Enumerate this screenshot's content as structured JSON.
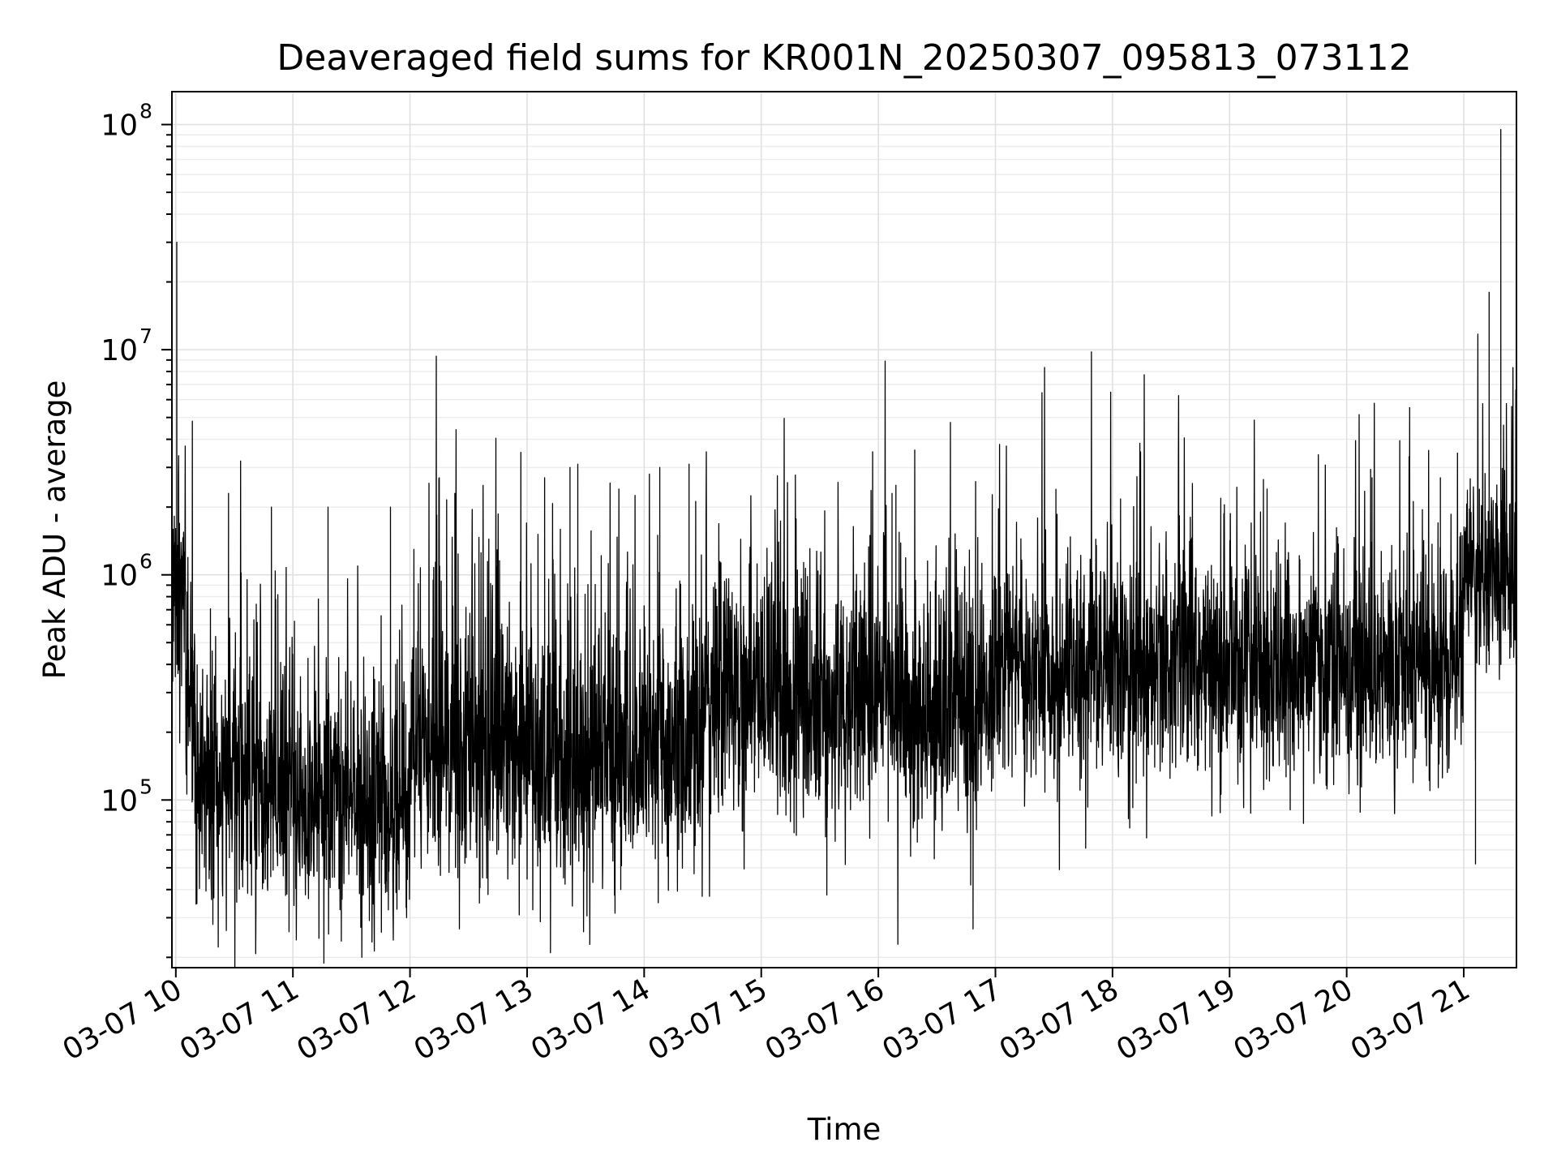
{
  "chart_data": {
    "type": "line",
    "title": "Deaveraged field sums for KR001N_20250307_095813_073112",
    "xlabel": "Time",
    "ylabel": "Peak ADU - average",
    "yscale": "log",
    "ylim": [
      18000,
      140000000
    ],
    "xlim": [
      "2025-03-07T09:58:00",
      "2025-03-07T21:27:00"
    ],
    "grid": true,
    "x_ticks": [
      {
        "t": "2025-03-07T10:00:00",
        "label": "03-07 10"
      },
      {
        "t": "2025-03-07T11:00:00",
        "label": "03-07 11"
      },
      {
        "t": "2025-03-07T12:00:00",
        "label": "03-07 12"
      },
      {
        "t": "2025-03-07T13:00:00",
        "label": "03-07 13"
      },
      {
        "t": "2025-03-07T14:00:00",
        "label": "03-07 14"
      },
      {
        "t": "2025-03-07T15:00:00",
        "label": "03-07 15"
      },
      {
        "t": "2025-03-07T16:00:00",
        "label": "03-07 16"
      },
      {
        "t": "2025-03-07T17:00:00",
        "label": "03-07 17"
      },
      {
        "t": "2025-03-07T18:00:00",
        "label": "03-07 18"
      },
      {
        "t": "2025-03-07T19:00:00",
        "label": "03-07 19"
      },
      {
        "t": "2025-03-07T20:00:00",
        "label": "03-07 20"
      },
      {
        "t": "2025-03-07T21:00:00",
        "label": "03-07 21"
      }
    ],
    "y_ticks": [
      {
        "value": 100000,
        "base": "10",
        "exp": "5"
      },
      {
        "value": 1000000,
        "base": "10",
        "exp": "6"
      },
      {
        "value": 10000000,
        "base": "10",
        "exp": "7"
      },
      {
        "value": 100000000,
        "base": "10",
        "exp": "8"
      }
    ],
    "series": [
      {
        "color": "#000000",
        "segments": [
          {
            "start": "2025-03-07T09:58:00",
            "end": "2025-03-07T10:05:00",
            "baseline": 900000,
            "spread": 0.45,
            "spikes": 0.05
          },
          {
            "start": "2025-03-07T10:05:00",
            "end": "2025-03-07T10:10:00",
            "baseline": 300000,
            "spread": 0.5,
            "spikes": 0.05
          },
          {
            "start": "2025-03-07T10:10:00",
            "end": "2025-03-07T11:00:00",
            "baseline": 120000,
            "spread": 0.5,
            "spikes": 0.05
          },
          {
            "start": "2025-03-07T11:00:00",
            "end": "2025-03-07T12:00:00",
            "baseline": 95000,
            "spread": 0.45,
            "spikes": 0.05
          },
          {
            "start": "2025-03-07T12:00:00",
            "end": "2025-03-07T13:00:00",
            "baseline": 170000,
            "spread": 0.55,
            "spikes": 0.08
          },
          {
            "start": "2025-03-07T13:00:00",
            "end": "2025-03-07T14:00:00",
            "baseline": 160000,
            "spread": 0.55,
            "spikes": 0.08
          },
          {
            "start": "2025-03-07T14:00:00",
            "end": "2025-03-07T14:30:00",
            "baseline": 180000,
            "spread": 0.5,
            "spikes": 0.05
          },
          {
            "start": "2025-03-07T14:30:00",
            "end": "2025-03-07T17:00:00",
            "baseline": 280000,
            "spread": 0.5,
            "spikes": 0.04
          },
          {
            "start": "2025-03-07T17:00:00",
            "end": "2025-03-07T19:00:00",
            "baseline": 380000,
            "spread": 0.45,
            "spikes": 0.04
          },
          {
            "start": "2025-03-07T19:00:00",
            "end": "2025-03-07T21:00:00",
            "baseline": 400000,
            "spread": 0.45,
            "spikes": 0.05
          },
          {
            "start": "2025-03-07T21:00:00",
            "end": "2025-03-07T21:27:00",
            "baseline": 1000000,
            "spread": 0.35,
            "spikes": 0.05
          }
        ],
        "peaks": [
          {
            "t": "2025-03-07T10:00:30",
            "value": 30000000
          },
          {
            "t": "2025-03-07T10:27:00",
            "value": 2300000
          },
          {
            "t": "2025-03-07T10:49:00",
            "value": 2000000
          },
          {
            "t": "2025-03-07T11:18:00",
            "value": 2000000
          },
          {
            "t": "2025-03-07T11:50:00",
            "value": 2000000
          },
          {
            "t": "2025-03-07T12:15:00",
            "value": 2700000
          },
          {
            "t": "2025-03-07T12:23:00",
            "value": 2300000
          },
          {
            "t": "2025-03-07T13:09:00",
            "value": 2700000
          },
          {
            "t": "2025-03-07T13:22:00",
            "value": 3000000
          },
          {
            "t": "2025-03-07T13:26:00",
            "value": 3100000
          },
          {
            "t": "2025-03-07T14:08:00",
            "value": 3000000
          },
          {
            "t": "2025-03-07T14:23:00",
            "value": 3100000
          },
          {
            "t": "2025-03-07T16:07:00",
            "value": 2300000
          },
          {
            "t": "2025-03-07T16:09:00",
            "value": 2500000
          },
          {
            "t": "2025-03-07T17:31:00",
            "value": 2400000
          },
          {
            "t": "2025-03-07T20:13:00",
            "value": 2700000
          },
          {
            "t": "2025-03-07T20:48:00",
            "value": 2700000
          },
          {
            "t": "2025-03-07T21:08:00",
            "value": 2400000
          },
          {
            "t": "2025-03-07T21:13:00",
            "value": 18000000
          },
          {
            "t": "2025-03-07T21:19:00",
            "value": 95000000
          }
        ],
        "troughs": [
          {
            "t": "2025-03-07T10:19:00",
            "value": 28000
          },
          {
            "t": "2025-03-07T10:58:00",
            "value": 26000
          },
          {
            "t": "2025-03-07T12:40:00",
            "value": 38000
          },
          {
            "t": "2025-03-07T13:48:00",
            "value": 40000
          },
          {
            "t": "2025-03-07T16:20:00",
            "value": 65000
          },
          {
            "t": "2025-03-07T21:06:00",
            "value": 52000
          }
        ]
      }
    ]
  }
}
